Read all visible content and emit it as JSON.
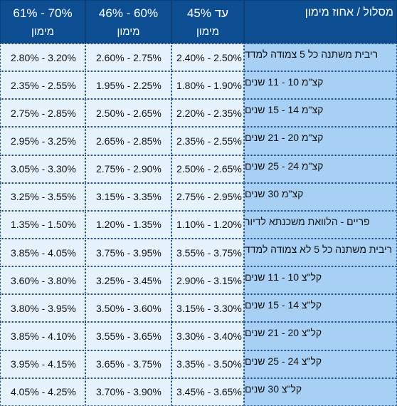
{
  "header": {
    "track_label": "מסלול / אחוז מימון",
    "columns": [
      {
        "range": "61% - 70%",
        "sub": "מימון"
      },
      {
        "range": "46% - 60%",
        "sub": "מימון"
      },
      {
        "range": "עד 45%",
        "sub": "מימון"
      }
    ]
  },
  "rows": [
    {
      "label": "ריבית משתנה כל 5 צמודה למדד",
      "values": [
        "2.80% - 3.20%",
        "2.60% - 2.75%",
        "2.40% - 2.50%"
      ]
    },
    {
      "label": "קצ\"מ 10 - 11 שנים",
      "values": [
        "2.35% - 2.55%",
        "1.95% - 2.25%",
        "1.80% - 1.90%"
      ]
    },
    {
      "label": "קצ\"מ 14 - 15 שנים",
      "values": [
        "2.75% - 2.85%",
        "2.50% - 2.65%",
        "2.20% - 2.35%"
      ]
    },
    {
      "label": "קצ\"מ 20 - 21 שנים",
      "values": [
        "2.95% - 3.25%",
        "2.65% - 2.85%",
        "2.35% - 2.55%"
      ]
    },
    {
      "label": "קצ\"מ 24 - 25 שנים",
      "values": [
        "3.05% - 3.30%",
        "2.75% - 2.90%",
        "2.50% - 2.65%"
      ]
    },
    {
      "label": "קצ\"מ 30 שנים",
      "values": [
        "3.25% - 3.55%",
        "3.15% - 3.35%",
        "2.75% - 2.95%"
      ]
    },
    {
      "label": "פריים - הלוואת משכנתא לדיור",
      "values": [
        "1.35% - 1.50%",
        "1.20% - 1.35%",
        "1.10% - 1.20%"
      ]
    },
    {
      "label": "ריבית משתנה כל 5 לא צמודה למדד",
      "values": [
        "3.85% - 4.05%",
        "3.75% - 3.95%",
        "3.55% - 3.75%"
      ]
    },
    {
      "label": "קל\"צ 10 - 11 שנים",
      "values": [
        "3.60% - 3.80%",
        "3.25% - 3.45%",
        "2.90% - 3.15%"
      ]
    },
    {
      "label": "קל\"צ 14 - 15 שנים",
      "values": [
        "3.80% - 3.95%",
        "3.50% - 3.60%",
        "3.15% - 3.30%"
      ]
    },
    {
      "label": "קל\"צ 20 - 21 שנים",
      "values": [
        "3.85% - 4.10%",
        "3.55% - 3.65%",
        "3.30% - 3.40%"
      ]
    },
    {
      "label": "קל\"צ 24 - 25 שנים",
      "values": [
        "3.95% - 4.15%",
        "3.65% - 3.75%",
        "3.35% - 3.50%"
      ]
    },
    {
      "label": "קל\"צ 30 שנים",
      "values": [
        "4.05% - 4.25%",
        "3.70% - 3.90%",
        "3.45% - 3.65%"
      ]
    }
  ],
  "colors": {
    "header_bg": "#0d4e93",
    "value_bg": "#e6f2fc",
    "label_bg": "#a8d0f5"
  }
}
